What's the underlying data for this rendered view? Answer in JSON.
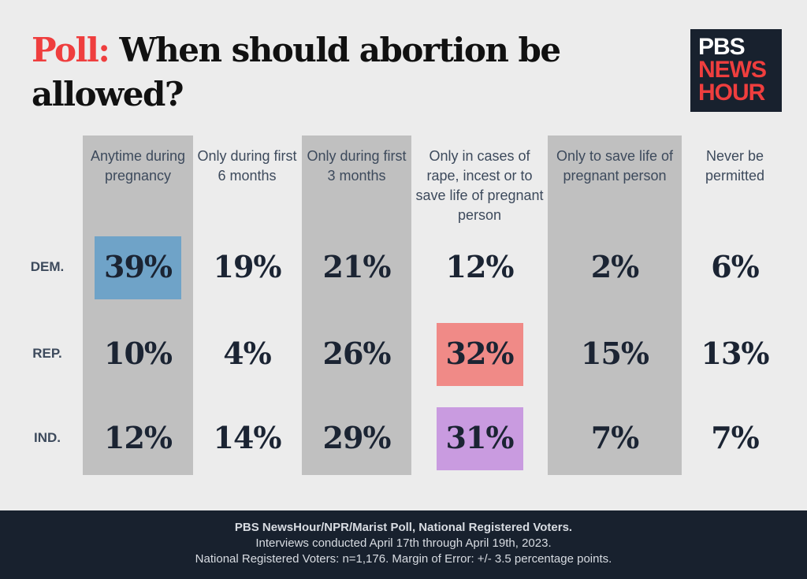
{
  "title": {
    "accent": "Poll:",
    "text": " When should abortion be allowed?"
  },
  "logo": {
    "line1": "PBS",
    "line2": "NEWS",
    "line3": "HOUR"
  },
  "colors": {
    "background": "#ececec",
    "column_shade": "#c0c0c0",
    "dem_highlight": "#6fa3c8",
    "rep_highlight": "#f08a87",
    "ind_highlight": "#c99be0",
    "accent": "#ef3e3e",
    "footer": "#18212e"
  },
  "chart_data": {
    "type": "table",
    "title": "Poll: When should abortion be allowed?",
    "columns": [
      "Anytime during pregnancy",
      "Only during first 6 months",
      "Only during first 3 months",
      "Only in cases of rape, incest or to save life of pregnant person",
      "Only to save life of pregnant person",
      "Never be permitted"
    ],
    "rows": [
      {
        "label": "DEM.",
        "values": [
          "39%",
          "19%",
          "21%",
          "12%",
          "2%",
          "6%"
        ],
        "highlight": 0
      },
      {
        "label": "REP.",
        "values": [
          "10%",
          "4%",
          "26%",
          "32%",
          "15%",
          "13%"
        ],
        "highlight": 3
      },
      {
        "label": "IND.",
        "values": [
          "12%",
          "14%",
          "29%",
          "31%",
          "7%",
          "7%"
        ],
        "highlight": 3
      }
    ]
  },
  "footer": {
    "line1": "PBS NewsHour/NPR/Marist Poll, National Registered Voters.",
    "line2": "Interviews conducted April 17th through April 19th, 2023.",
    "line3": "National Registered Voters: n=1,176. Margin of Error: +/- 3.5 percentage points."
  }
}
